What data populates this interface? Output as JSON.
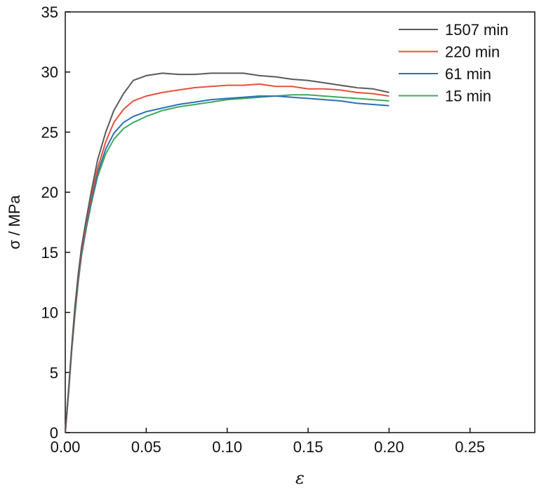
{
  "chart_data": {
    "type": "line",
    "title": "",
    "xlabel": "ε",
    "ylabel": "σ / MPa",
    "xlim": [
      0,
      0.29
    ],
    "ylim": [
      0,
      35
    ],
    "xticks": [
      "0.00",
      "0.05",
      "0.10",
      "0.15",
      "0.20",
      "0.25"
    ],
    "xtick_values": [
      0,
      0.05,
      0.1,
      0.15,
      0.2,
      0.25
    ],
    "yticks": [
      "0",
      "5",
      "10",
      "15",
      "20",
      "25",
      "30",
      "35"
    ],
    "ytick_values": [
      0,
      5,
      10,
      15,
      20,
      25,
      30,
      35
    ],
    "grid": false,
    "legend_position": "top-right",
    "series": [
      {
        "name": "1507 min",
        "color": "#5a5a5a",
        "x": [
          0,
          0.002,
          0.004,
          0.006,
          0.008,
          0.01,
          0.013,
          0.016,
          0.02,
          0.025,
          0.03,
          0.036,
          0.042,
          0.05,
          0.06,
          0.07,
          0.075,
          0.08,
          0.09,
          0.1,
          0.11,
          0.12,
          0.13,
          0.14,
          0.15,
          0.16,
          0.17,
          0.18,
          0.19,
          0.2
        ],
        "y": [
          0,
          3.5,
          7.2,
          10.5,
          13.2,
          15.4,
          17.8,
          20.0,
          22.7,
          25.0,
          26.8,
          28.2,
          29.3,
          29.7,
          29.9,
          29.8,
          29.8,
          29.8,
          29.9,
          29.9,
          29.9,
          29.7,
          29.6,
          29.4,
          29.3,
          29.1,
          28.9,
          28.7,
          28.6,
          28.3
        ]
      },
      {
        "name": "220 min",
        "color": "#e8503a",
        "x": [
          0,
          0.002,
          0.004,
          0.006,
          0.008,
          0.01,
          0.013,
          0.016,
          0.02,
          0.025,
          0.03,
          0.036,
          0.042,
          0.05,
          0.06,
          0.07,
          0.08,
          0.09,
          0.1,
          0.11,
          0.12,
          0.13,
          0.14,
          0.15,
          0.16,
          0.17,
          0.18,
          0.19,
          0.2
        ],
        "y": [
          0,
          3.4,
          7.0,
          10.2,
          12.9,
          15.1,
          17.5,
          19.6,
          22.0,
          24.2,
          25.8,
          26.9,
          27.6,
          28.0,
          28.3,
          28.5,
          28.7,
          28.8,
          28.9,
          28.9,
          29.0,
          28.8,
          28.8,
          28.6,
          28.6,
          28.5,
          28.3,
          28.2,
          28.0
        ]
      },
      {
        "name": "61 min",
        "color": "#2e6fb5",
        "x": [
          0,
          0.002,
          0.004,
          0.006,
          0.008,
          0.01,
          0.013,
          0.016,
          0.02,
          0.025,
          0.03,
          0.036,
          0.042,
          0.05,
          0.06,
          0.07,
          0.08,
          0.09,
          0.1,
          0.11,
          0.12,
          0.13,
          0.14,
          0.15,
          0.16,
          0.17,
          0.18,
          0.19,
          0.2
        ],
        "y": [
          0,
          3.3,
          6.9,
          10.0,
          12.7,
          14.9,
          17.2,
          19.2,
          21.6,
          23.6,
          24.9,
          25.8,
          26.3,
          26.7,
          27.0,
          27.3,
          27.5,
          27.7,
          27.8,
          27.9,
          28.0,
          28.0,
          27.9,
          27.8,
          27.7,
          27.6,
          27.4,
          27.3,
          27.2
        ]
      },
      {
        "name": "15 min",
        "color": "#3aaa5c",
        "x": [
          0,
          0.002,
          0.004,
          0.006,
          0.008,
          0.01,
          0.013,
          0.016,
          0.02,
          0.025,
          0.03,
          0.036,
          0.042,
          0.05,
          0.06,
          0.07,
          0.08,
          0.09,
          0.1,
          0.11,
          0.12,
          0.13,
          0.14,
          0.15,
          0.16,
          0.17,
          0.18,
          0.19,
          0.2
        ],
        "y": [
          0,
          3.2,
          6.8,
          9.8,
          12.5,
          14.7,
          17.0,
          19.0,
          21.3,
          23.2,
          24.4,
          25.3,
          25.8,
          26.3,
          26.8,
          27.1,
          27.3,
          27.5,
          27.7,
          27.8,
          27.9,
          28.0,
          28.1,
          28.1,
          28.0,
          27.9,
          27.8,
          27.7,
          27.6
        ]
      }
    ]
  }
}
